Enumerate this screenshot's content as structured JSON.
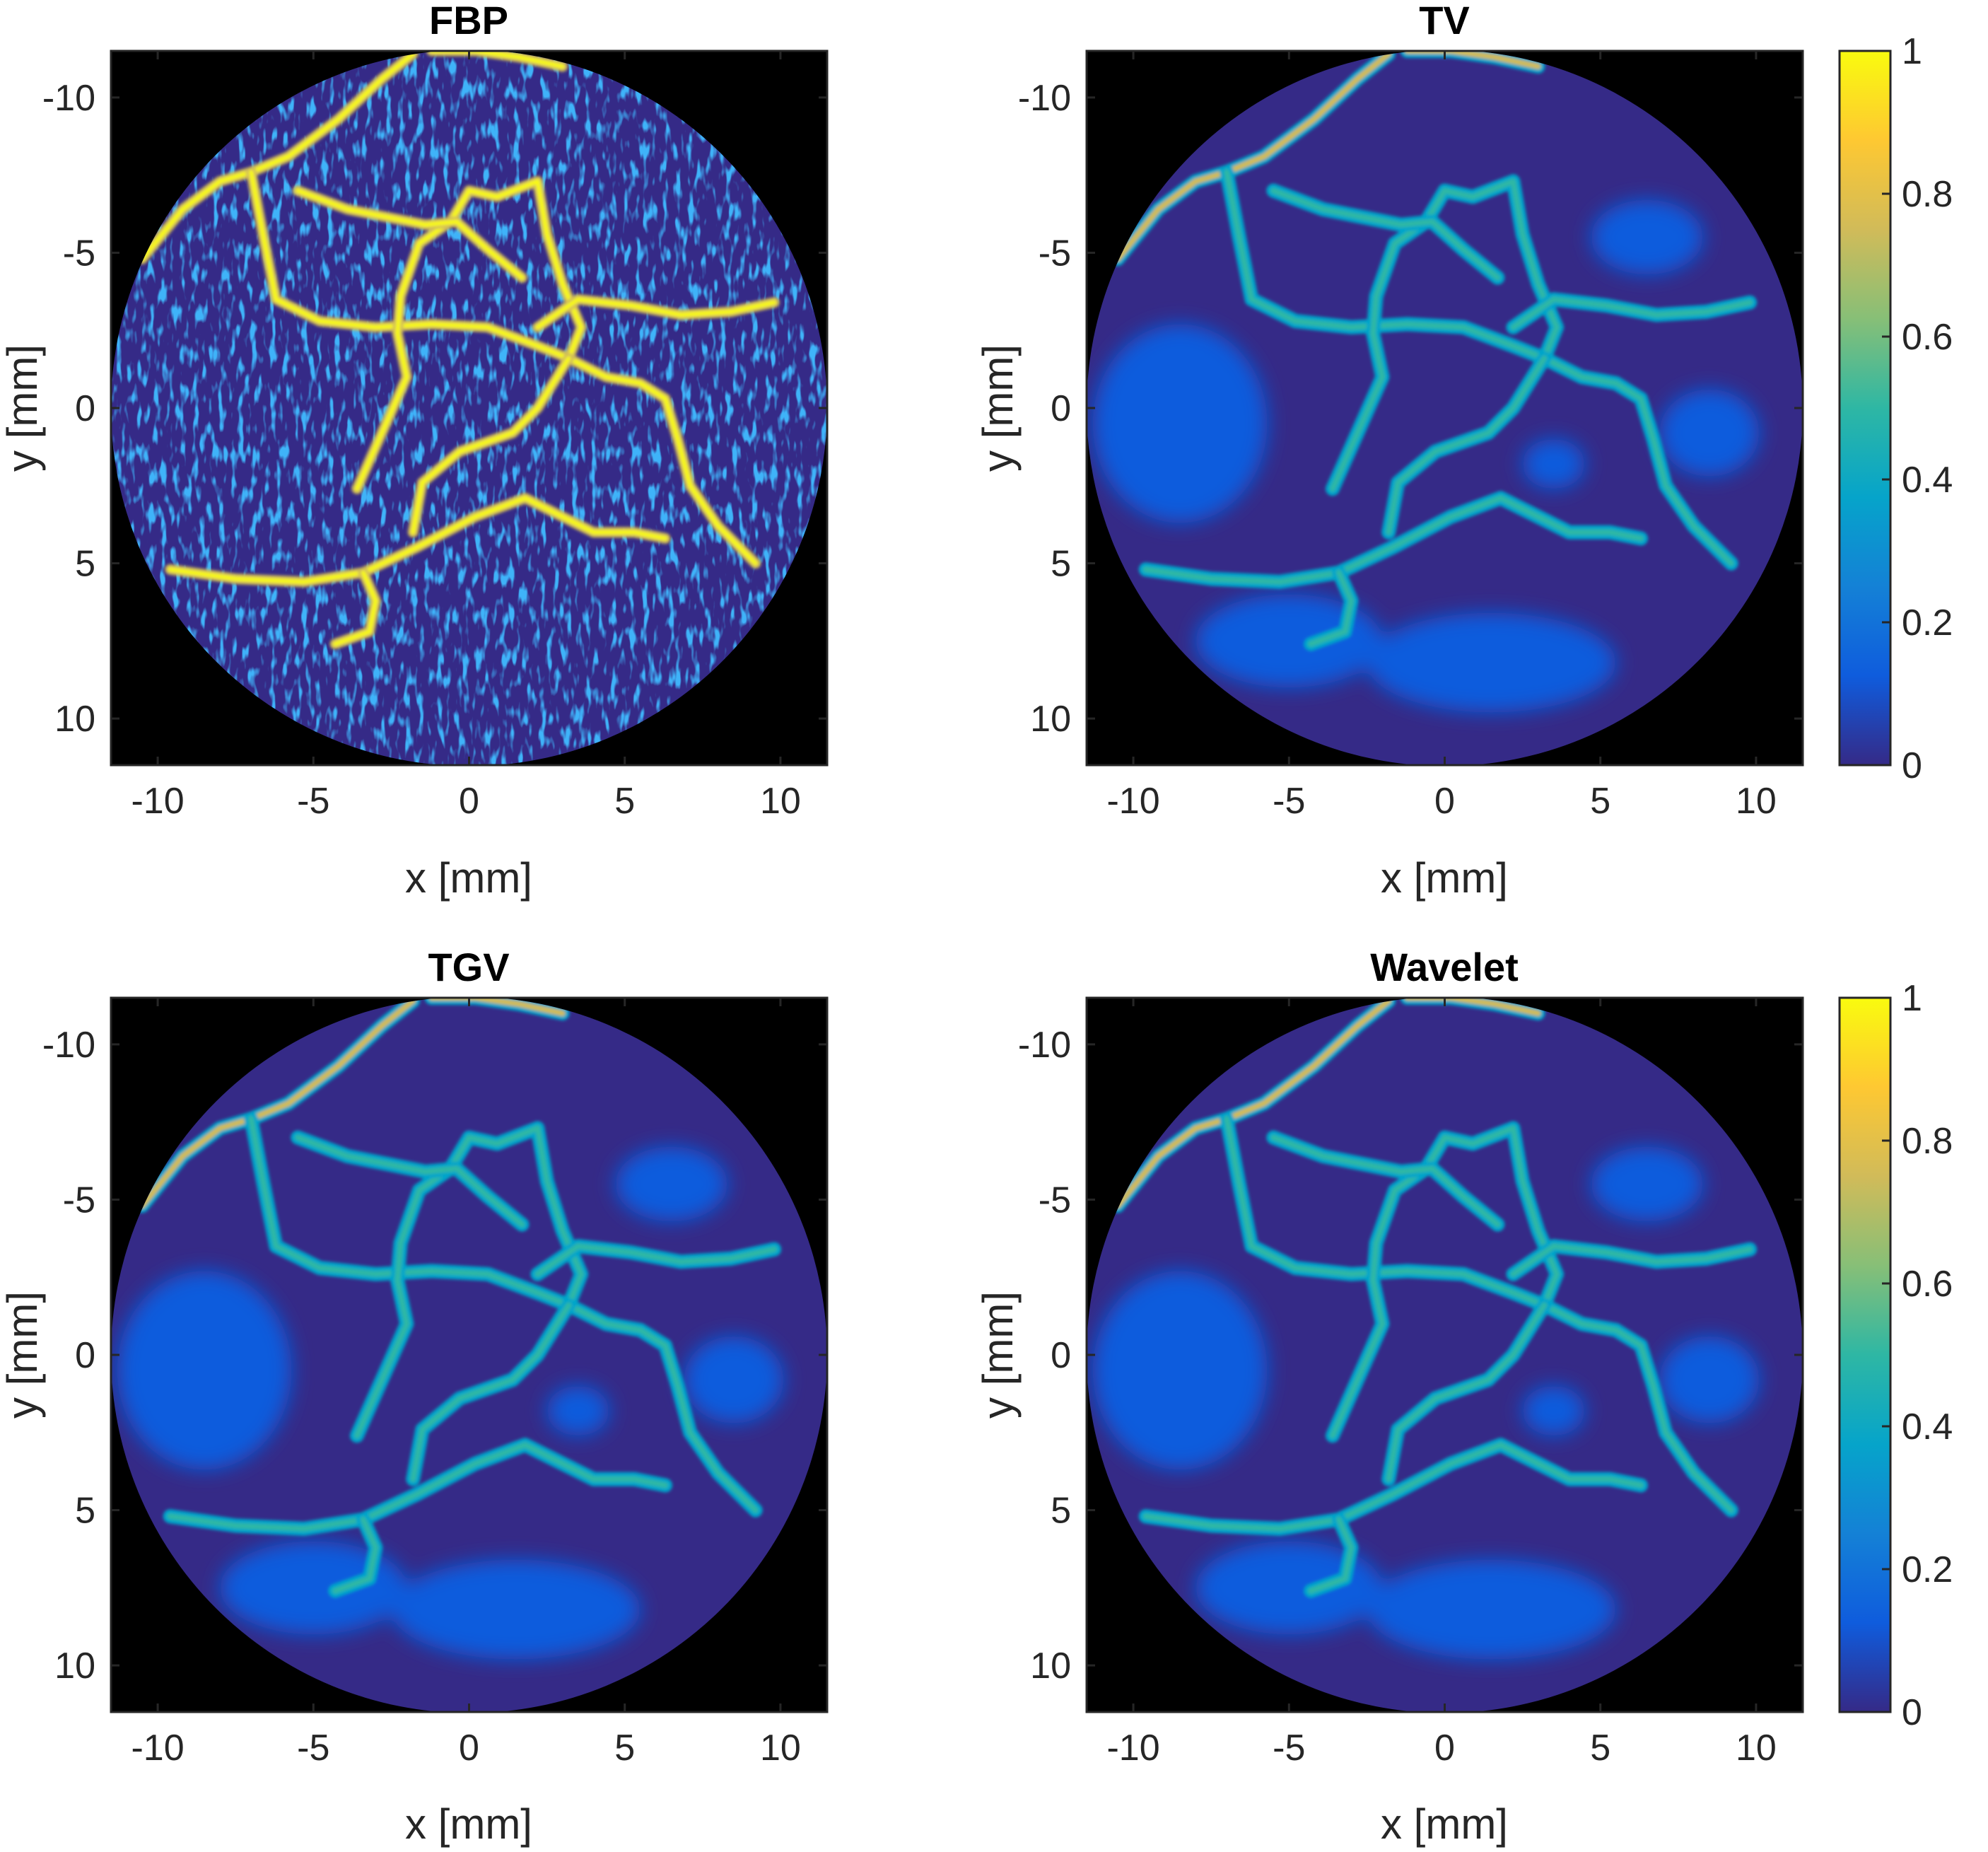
{
  "chart_data": [
    {
      "type": "heatmap",
      "title": "FBP",
      "xlabel": "x [mm]",
      "ylabel": "y [mm]",
      "xlim": [
        -11.5,
        11.5
      ],
      "ylim": [
        -11.5,
        11.5
      ],
      "y_reversed": true,
      "xticks": [
        -10,
        -5,
        0,
        5,
        10
      ],
      "yticks": [
        -10,
        -5,
        0,
        5,
        10
      ],
      "colorbar": false,
      "style": "noisy"
    },
    {
      "type": "heatmap",
      "title": "TV",
      "xlabel": "x [mm]",
      "ylabel": "y [mm]",
      "xlim": [
        -11.5,
        11.5
      ],
      "ylim": [
        -11.5,
        11.5
      ],
      "y_reversed": true,
      "xticks": [
        -10,
        -5,
        0,
        5,
        10
      ],
      "yticks": [
        -10,
        -5,
        0,
        5,
        10
      ],
      "colorbar": true,
      "colorbar_ticks": [
        "0",
        "0.2",
        "0.4",
        "0.6",
        "0.8",
        "1"
      ],
      "colorbar_range": [
        0,
        1
      ],
      "style": "smooth"
    },
    {
      "type": "heatmap",
      "title": "TGV",
      "xlabel": "x [mm]",
      "ylabel": "y [mm]",
      "xlim": [
        -11.5,
        11.5
      ],
      "ylim": [
        -11.5,
        11.5
      ],
      "y_reversed": true,
      "xticks": [
        -10,
        -5,
        0,
        5,
        10
      ],
      "yticks": [
        -10,
        -5,
        0,
        5,
        10
      ],
      "colorbar": false,
      "style": "smooth"
    },
    {
      "type": "heatmap",
      "title": "Wavelet",
      "xlabel": "x [mm]",
      "ylabel": "y [mm]",
      "xlim": [
        -11.5,
        11.5
      ],
      "ylim": [
        -11.5,
        11.5
      ],
      "y_reversed": true,
      "xticks": [
        -10,
        -5,
        0,
        5,
        10
      ],
      "yticks": [
        -10,
        -5,
        0,
        5,
        10
      ],
      "colorbar": true,
      "colorbar_ticks": [
        "0",
        "0.2",
        "0.4",
        "0.6",
        "0.8",
        "1"
      ],
      "colorbar_range": [
        0,
        1
      ],
      "style": "smooth"
    }
  ],
  "colormap": {
    "name": "parula",
    "stops": [
      "#352a87",
      "#0f5cdd",
      "#1481d6",
      "#06a4ca",
      "#2eb7a4",
      "#87bf77",
      "#d1bb59",
      "#fec832",
      "#f9fb0e"
    ]
  },
  "vessels": [
    [
      [
        -10.5,
        -4.8
      ],
      [
        -9.2,
        -6.4
      ],
      [
        -8.0,
        -7.3
      ],
      [
        -7.0,
        -7.6
      ]
    ],
    [
      [
        -7.0,
        -7.6
      ],
      [
        -5.8,
        -8.1
      ],
      [
        -4.2,
        -9.3
      ],
      [
        -2.8,
        -10.6
      ],
      [
        -1.8,
        -11.4
      ]
    ],
    [
      [
        -1.2,
        -11.5
      ],
      [
        0.2,
        -11.5
      ],
      [
        1.6,
        -11.3
      ],
      [
        3.0,
        -11.0
      ]
    ],
    [
      [
        -7.0,
        -7.6
      ],
      [
        -6.6,
        -5.5
      ],
      [
        -6.2,
        -3.5
      ],
      [
        -4.8,
        -2.8
      ],
      [
        -3.0,
        -2.6
      ],
      [
        -1.2,
        -2.7
      ],
      [
        0.6,
        -2.6
      ],
      [
        2.2,
        -2.0
      ],
      [
        3.2,
        -1.6
      ]
    ],
    [
      [
        3.2,
        -1.6
      ],
      [
        4.4,
        -1.0
      ],
      [
        5.5,
        -0.8
      ],
      [
        6.3,
        -0.3
      ],
      [
        6.7,
        1.0
      ],
      [
        7.1,
        2.5
      ],
      [
        8.0,
        3.8
      ],
      [
        9.2,
        5.0
      ]
    ],
    [
      [
        3.2,
        -1.6
      ],
      [
        3.6,
        -2.6
      ],
      [
        3.0,
        -4.0
      ],
      [
        2.5,
        -5.6
      ],
      [
        2.2,
        -7.3
      ],
      [
        0.9,
        -6.8
      ],
      [
        0.0,
        -7.0
      ],
      [
        -0.6,
        -6.0
      ],
      [
        -1.6,
        -5.3
      ],
      [
        -2.2,
        -3.6
      ],
      [
        -2.3,
        -2.4
      ],
      [
        -2.0,
        -1.0
      ],
      [
        -2.8,
        0.8
      ],
      [
        -3.6,
        2.6
      ]
    ],
    [
      [
        3.2,
        -1.6
      ],
      [
        2.2,
        0.0
      ],
      [
        1.4,
        0.8
      ],
      [
        -0.3,
        1.4
      ],
      [
        -1.5,
        2.4
      ],
      [
        -1.8,
        4.0
      ]
    ],
    [
      [
        -5.5,
        -7.0
      ],
      [
        -3.9,
        -6.4
      ],
      [
        -2.4,
        -6.1
      ],
      [
        -1.4,
        -5.9
      ],
      [
        -0.4,
        -6.0
      ],
      [
        0.6,
        -5.1
      ],
      [
        1.7,
        -4.2
      ]
    ],
    [
      [
        2.2,
        -2.6
      ],
      [
        3.5,
        -3.5
      ],
      [
        5.2,
        -3.3
      ],
      [
        6.8,
        -3.0
      ],
      [
        8.4,
        -3.1
      ],
      [
        9.8,
        -3.4
      ]
    ],
    [
      [
        -9.6,
        5.2
      ],
      [
        -7.5,
        5.5
      ],
      [
        -5.3,
        5.6
      ],
      [
        -3.4,
        5.3
      ],
      [
        -1.7,
        4.5
      ],
      [
        0.2,
        3.5
      ],
      [
        1.8,
        2.9
      ],
      [
        2.8,
        3.4
      ],
      [
        4.0,
        4.0
      ],
      [
        5.3,
        4.0
      ],
      [
        6.3,
        4.2
      ]
    ],
    [
      [
        -3.4,
        5.3
      ],
      [
        -3.0,
        6.2
      ],
      [
        -3.2,
        7.2
      ],
      [
        -4.3,
        7.6
      ]
    ]
  ]
}
